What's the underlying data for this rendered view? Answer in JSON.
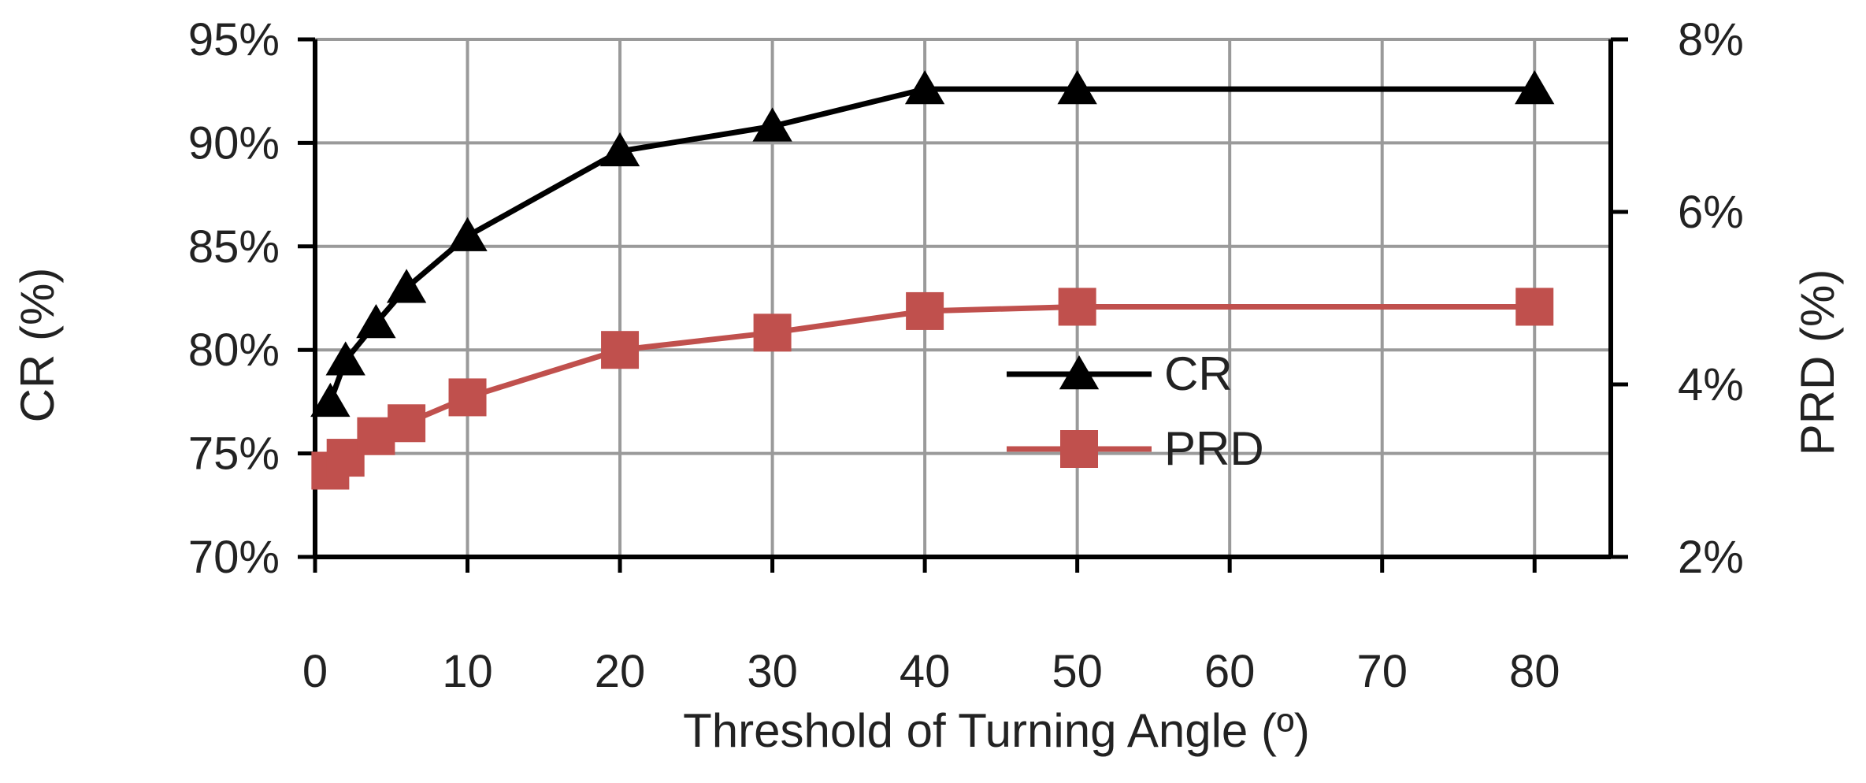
{
  "chart_data": {
    "type": "line",
    "xlabel": "Threshold of Turning Angle (º)",
    "ylabel_left": "CR (%)",
    "ylabel_right": "PRD (%)",
    "x_ticks": [
      "0",
      "10",
      "20",
      "30",
      "40",
      "50",
      "60",
      "70",
      "80"
    ],
    "y_left_ticks": [
      "70%",
      "75%",
      "80%",
      "85%",
      "90%",
      "95%"
    ],
    "y_right_ticks": [
      "2%",
      "4%",
      "6%",
      "8%"
    ],
    "xlim": [
      0,
      85
    ],
    "ylim_left": [
      70,
      95
    ],
    "ylim_right": [
      2,
      8
    ],
    "grid": true,
    "legend_position": "center",
    "series": [
      {
        "name": "CR",
        "axis": "left",
        "color": "#000000",
        "marker": "triangle",
        "x": [
          1,
          2,
          4,
          6,
          10,
          20,
          30,
          40,
          50,
          80
        ],
        "values": [
          77.5,
          79.5,
          81.3,
          83.0,
          85.5,
          89.6,
          90.8,
          92.6,
          92.6,
          92.6
        ]
      },
      {
        "name": "PRD",
        "axis": "right",
        "color": "#c0504d",
        "marker": "square",
        "x": [
          1,
          2,
          4,
          6,
          10,
          20,
          30,
          40,
          50,
          80
        ],
        "values": [
          3.0,
          3.15,
          3.4,
          3.55,
          3.85,
          4.4,
          4.6,
          4.85,
          4.9,
          4.9
        ]
      }
    ]
  }
}
